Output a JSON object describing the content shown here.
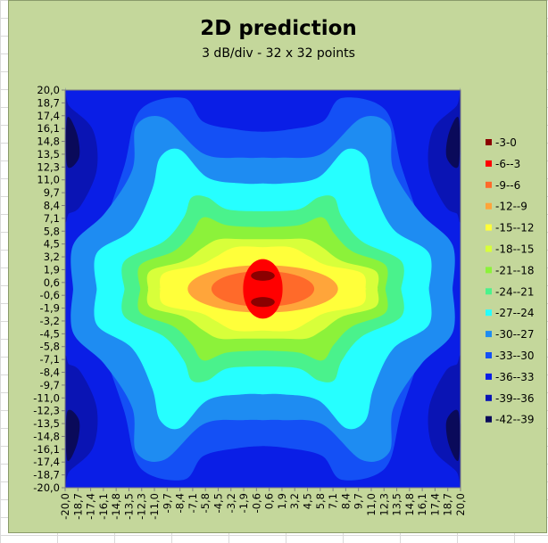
{
  "chart_data": {
    "type": "heatmap",
    "title": "2D prediction",
    "subtitle": "3 dB/div - 32 x 32 points",
    "x_ticks": [
      "-20,0",
      "-18,7",
      "-17,4",
      "-16,1",
      "-14,8",
      "-13,5",
      "-12,3",
      "-11,0",
      "-9,7",
      "-8,4",
      "-7,1",
      "-5,8",
      "-4,5",
      "-3,2",
      "-1,9",
      "-0,6",
      "0,6",
      "1,9",
      "3,2",
      "4,5",
      "5,8",
      "7,1",
      "8,4",
      "9,7",
      "11,0",
      "12,3",
      "13,5",
      "14,8",
      "16,1",
      "17,4",
      "18,7",
      "20,0"
    ],
    "y_ticks": [
      "20,0",
      "18,7",
      "17,4",
      "16,1",
      "14,8",
      "13,5",
      "12,3",
      "11,0",
      "9,7",
      "8,4",
      "7,1",
      "5,8",
      "4,5",
      "3,2",
      "1,9",
      "0,6",
      "-0,6",
      "-1,9",
      "-3,2",
      "-4,5",
      "-5,8",
      "-7,1",
      "-8,4",
      "-9,7",
      "-11,0",
      "-12,3",
      "-13,5",
      "-14,8",
      "-16,1",
      "-17,4",
      "-18,7",
      "-20,0"
    ],
    "xlim": [
      -20,
      20
    ],
    "ylim": [
      -20,
      20
    ],
    "legend_position": "right",
    "legend": [
      {
        "label": "-3-0",
        "color": "#8b0000"
      },
      {
        "label": "-6--3",
        "color": "#ff0000"
      },
      {
        "label": "-9--6",
        "color": "#ff6a2a"
      },
      {
        "label": "-12--9",
        "color": "#ffa53a"
      },
      {
        "label": "-15--12",
        "color": "#ffff3a"
      },
      {
        "label": "-18--15",
        "color": "#d8ff3a"
      },
      {
        "label": "-21--18",
        "color": "#8cf23a"
      },
      {
        "label": "-24--21",
        "color": "#4af28c"
      },
      {
        "label": "-27--24",
        "color": "#26ffff"
      },
      {
        "label": "-30--27",
        "color": "#1e8cf2"
      },
      {
        "label": "-33--30",
        "color": "#1450f5"
      },
      {
        "label": "-36--33",
        "color": "#0a1ee6"
      },
      {
        "label": "-39--36",
        "color": "#0a14b4"
      },
      {
        "label": "-42--39",
        "color": "#0a0a5a"
      }
    ]
  }
}
